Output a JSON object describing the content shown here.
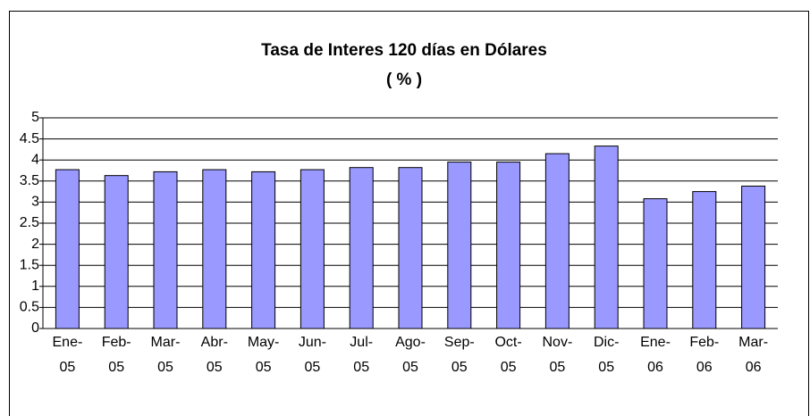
{
  "chart_data": {
    "type": "bar",
    "title": "Tasa de Interes 120 días en Dólares",
    "subtitle": "( % )",
    "categories": [
      "Ene-05",
      "Feb-05",
      "Mar-05",
      "Abr-05",
      "May-05",
      "Jun-05",
      "Jul-05",
      "Ago-05",
      "Sep-05",
      "Oct-05",
      "Nov-05",
      "Dic-05",
      "Ene-06",
      "Feb-06",
      "Mar-06"
    ],
    "values": [
      3.77,
      3.63,
      3.72,
      3.77,
      3.72,
      3.77,
      3.82,
      3.82,
      3.95,
      3.95,
      4.15,
      4.33,
      3.08,
      3.25,
      3.38
    ],
    "color": "#9999ff",
    "ylim": [
      0,
      5
    ],
    "yticks": [
      0,
      0.5,
      1,
      1.5,
      2,
      2.5,
      3,
      3.5,
      4,
      4.5,
      5
    ],
    "grid": true
  }
}
